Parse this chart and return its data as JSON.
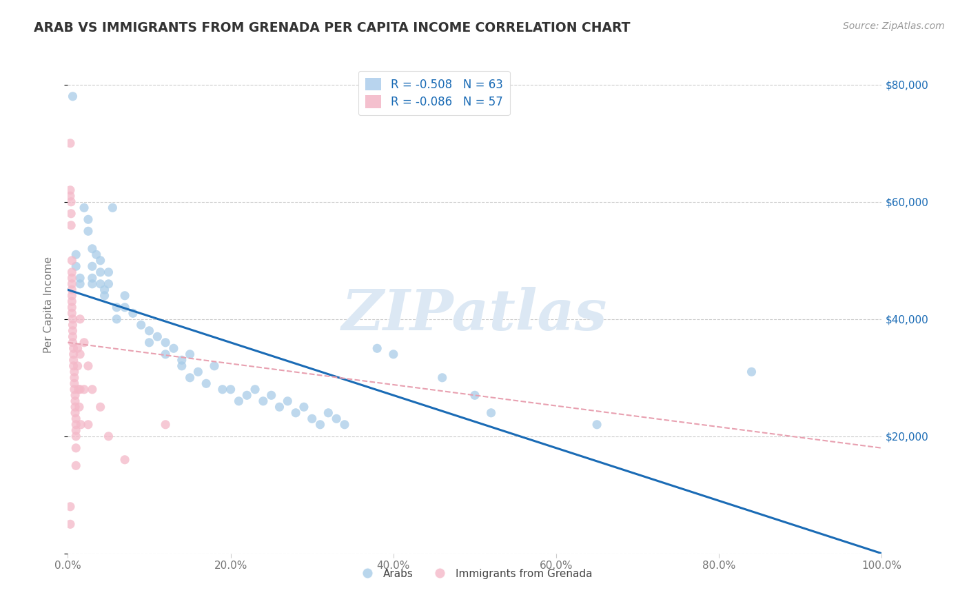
{
  "title": "ARAB VS IMMIGRANTS FROM GRENADA PER CAPITA INCOME CORRELATION CHART",
  "source": "Source: ZipAtlas.com",
  "ylabel": "Per Capita Income",
  "xlim": [
    0,
    1.0
  ],
  "ylim": [
    0,
    85000
  ],
  "xticks": [
    0.0,
    0.2,
    0.4,
    0.6,
    0.8,
    1.0
  ],
  "xticklabels": [
    "0.0%",
    "20.0%",
    "40.0%",
    "60.0%",
    "80.0%",
    "100.0%"
  ],
  "yticks": [
    0,
    20000,
    40000,
    60000,
    80000
  ],
  "yticklabels_right": [
    "",
    "$20,000",
    "$40,000",
    "$60,000",
    "$80,000"
  ],
  "blue_color": "#a8cce8",
  "pink_color": "#f4b8c8",
  "blue_line_color": "#1a6bb5",
  "pink_line_color": "#e8a0b0",
  "watermark_text": "ZIPatlas",
  "watermark_color": "#dce8f4",
  "background_color": "#ffffff",
  "grid_color": "#cccccc",
  "title_color": "#333333",
  "source_color": "#999999",
  "axis_label_color": "#777777",
  "tick_color": "#777777",
  "legend_text_color": "#1a6bb5",
  "legend_entry1": "R = -0.508   N = 63",
  "legend_entry2": "R = -0.086   N = 57",
  "blue_line_x0": 0.0,
  "blue_line_y0": 45000,
  "blue_line_x1": 1.0,
  "blue_line_y1": 0,
  "pink_line_x0": 0.0,
  "pink_line_y0": 36000,
  "pink_line_x1": 1.0,
  "pink_line_y1": 18000,
  "blue_dots": [
    [
      0.006,
      78000
    ],
    [
      0.01,
      51000
    ],
    [
      0.01,
      49000
    ],
    [
      0.015,
      47000
    ],
    [
      0.015,
      46000
    ],
    [
      0.02,
      59000
    ],
    [
      0.025,
      57000
    ],
    [
      0.025,
      55000
    ],
    [
      0.03,
      52000
    ],
    [
      0.03,
      49000
    ],
    [
      0.03,
      47000
    ],
    [
      0.03,
      46000
    ],
    [
      0.035,
      51000
    ],
    [
      0.04,
      50000
    ],
    [
      0.04,
      48000
    ],
    [
      0.04,
      46000
    ],
    [
      0.045,
      45000
    ],
    [
      0.045,
      44000
    ],
    [
      0.05,
      48000
    ],
    [
      0.05,
      46000
    ],
    [
      0.055,
      59000
    ],
    [
      0.06,
      42000
    ],
    [
      0.06,
      40000
    ],
    [
      0.07,
      44000
    ],
    [
      0.07,
      42000
    ],
    [
      0.08,
      41000
    ],
    [
      0.09,
      39000
    ],
    [
      0.1,
      38000
    ],
    [
      0.1,
      36000
    ],
    [
      0.11,
      37000
    ],
    [
      0.12,
      36000
    ],
    [
      0.12,
      34000
    ],
    [
      0.13,
      35000
    ],
    [
      0.14,
      33000
    ],
    [
      0.14,
      32000
    ],
    [
      0.15,
      34000
    ],
    [
      0.15,
      30000
    ],
    [
      0.16,
      31000
    ],
    [
      0.17,
      29000
    ],
    [
      0.18,
      32000
    ],
    [
      0.19,
      28000
    ],
    [
      0.2,
      28000
    ],
    [
      0.21,
      26000
    ],
    [
      0.22,
      27000
    ],
    [
      0.23,
      28000
    ],
    [
      0.24,
      26000
    ],
    [
      0.25,
      27000
    ],
    [
      0.26,
      25000
    ],
    [
      0.27,
      26000
    ],
    [
      0.28,
      24000
    ],
    [
      0.29,
      25000
    ],
    [
      0.3,
      23000
    ],
    [
      0.31,
      22000
    ],
    [
      0.32,
      24000
    ],
    [
      0.33,
      23000
    ],
    [
      0.34,
      22000
    ],
    [
      0.38,
      35000
    ],
    [
      0.4,
      34000
    ],
    [
      0.46,
      30000
    ],
    [
      0.5,
      27000
    ],
    [
      0.52,
      24000
    ],
    [
      0.65,
      22000
    ],
    [
      0.84,
      31000
    ]
  ],
  "pink_dots": [
    [
      0.003,
      70000
    ],
    [
      0.003,
      62000
    ],
    [
      0.003,
      61000
    ],
    [
      0.004,
      60000
    ],
    [
      0.004,
      58000
    ],
    [
      0.004,
      56000
    ],
    [
      0.005,
      50000
    ],
    [
      0.005,
      48000
    ],
    [
      0.005,
      47000
    ],
    [
      0.005,
      46000
    ],
    [
      0.005,
      45000
    ],
    [
      0.005,
      44000
    ],
    [
      0.005,
      43000
    ],
    [
      0.005,
      42000
    ],
    [
      0.005,
      41000
    ],
    [
      0.006,
      40000
    ],
    [
      0.006,
      39000
    ],
    [
      0.006,
      38000
    ],
    [
      0.006,
      37000
    ],
    [
      0.006,
      36000
    ],
    [
      0.007,
      35000
    ],
    [
      0.007,
      34000
    ],
    [
      0.007,
      33000
    ],
    [
      0.007,
      32000
    ],
    [
      0.008,
      31000
    ],
    [
      0.008,
      30000
    ],
    [
      0.008,
      29000
    ],
    [
      0.008,
      28000
    ],
    [
      0.009,
      27000
    ],
    [
      0.009,
      26000
    ],
    [
      0.009,
      25000
    ],
    [
      0.009,
      24000
    ],
    [
      0.01,
      23000
    ],
    [
      0.01,
      22000
    ],
    [
      0.01,
      21000
    ],
    [
      0.01,
      20000
    ],
    [
      0.01,
      18000
    ],
    [
      0.01,
      15000
    ],
    [
      0.012,
      35000
    ],
    [
      0.012,
      32000
    ],
    [
      0.013,
      28000
    ],
    [
      0.014,
      25000
    ],
    [
      0.015,
      40000
    ],
    [
      0.015,
      34000
    ],
    [
      0.015,
      28000
    ],
    [
      0.016,
      22000
    ],
    [
      0.02,
      36000
    ],
    [
      0.02,
      28000
    ],
    [
      0.025,
      32000
    ],
    [
      0.025,
      22000
    ],
    [
      0.03,
      28000
    ],
    [
      0.04,
      25000
    ],
    [
      0.003,
      8000
    ],
    [
      0.003,
      5000
    ],
    [
      0.12,
      22000
    ],
    [
      0.05,
      20000
    ],
    [
      0.07,
      16000
    ]
  ]
}
